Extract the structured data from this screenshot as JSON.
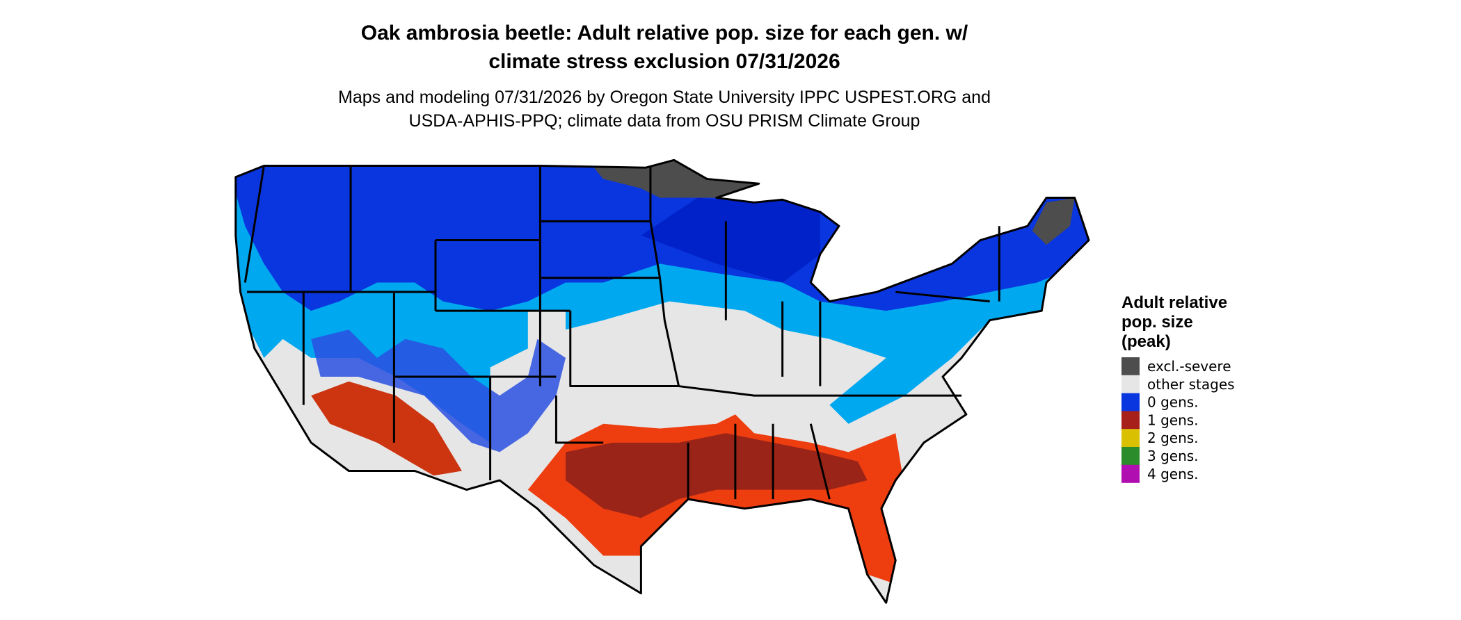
{
  "header": {
    "title_lines": [
      "Oak ambrosia beetle: Adult relative pop. size for each gen. w/",
      "climate stress exclusion 07/31/2026"
    ],
    "subtitle_lines": [
      "Maps and modeling 07/31/2026 by Oregon State University IPPC USPEST.ORG and",
      "USDA-APHIS-PPQ; climate data from OSU PRISM Climate Group"
    ]
  },
  "legend": {
    "title_lines": [
      "Adult relative",
      "pop. size",
      "(peak)"
    ],
    "items": [
      {
        "label": "excl.-severe",
        "color": "#4d4d4d"
      },
      {
        "label": "other stages",
        "color": "#e6e6e6"
      },
      {
        "label": "0 gens.",
        "color": "#0a36e0"
      },
      {
        "label": "1 gens.",
        "color": "#a8201a"
      },
      {
        "label": "2 gens.",
        "color": "#d9c000"
      },
      {
        "label": "3 gens.",
        "color": "#2a8c2a"
      },
      {
        "label": "4 gens.",
        "color": "#b00eb0"
      }
    ]
  }
}
